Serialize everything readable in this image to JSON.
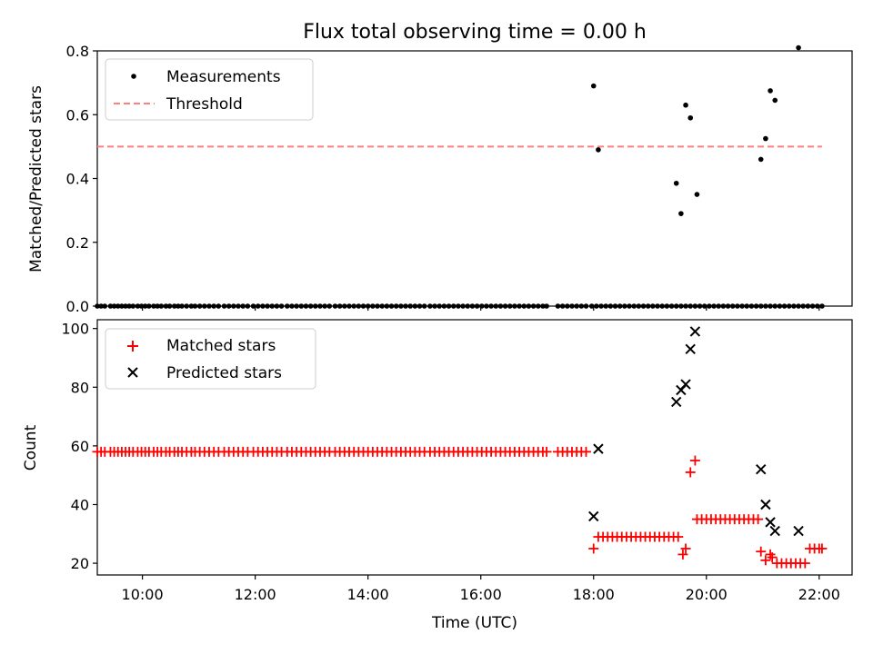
{
  "chart_data": [
    {
      "type": "scatter",
      "title": "Flux total observing time = 0.00 h",
      "xlabel": "",
      "ylabel": "Matched/Predicted stars",
      "xlim": [
        "09:12",
        "22:35"
      ],
      "ylim": [
        0,
        0.8
      ],
      "yticks": [
        0.0,
        0.2,
        0.4,
        0.6,
        0.8
      ],
      "ytick_labels": [
        "0.0",
        "0.2",
        "0.4",
        "0.6",
        "0.8"
      ],
      "legend_position": "upper-left",
      "series": [
        {
          "name": "Measurements",
          "kind": "scatter",
          "color": "#000000",
          "marker": "dot",
          "x": [
            "09:12",
            "09:16",
            "09:20",
            "09:26",
            "09:30",
            "09:34",
            "09:38",
            "09:42",
            "09:46",
            "09:50",
            "09:55",
            "09:59",
            "10:03",
            "10:07",
            "10:12",
            "10:16",
            "10:20",
            "10:25",
            "10:29",
            "10:34",
            "10:38",
            "10:42",
            "10:47",
            "10:52",
            "10:56",
            "11:01",
            "11:06",
            "11:11",
            "11:16",
            "11:21",
            "11:27",
            "11:32",
            "11:37",
            "11:42",
            "11:47",
            "11:52",
            "11:58",
            "12:03",
            "12:08",
            "12:13",
            "12:18",
            "12:23",
            "12:28",
            "12:34",
            "12:39",
            "12:44",
            "12:49",
            "12:54",
            "12:59",
            "13:04",
            "13:09",
            "13:14",
            "13:19",
            "13:25",
            "13:30",
            "13:35",
            "13:40",
            "13:45",
            "13:50",
            "13:55",
            "14:00",
            "14:05",
            "14:10",
            "14:15",
            "14:20",
            "14:25",
            "14:30",
            "14:35",
            "14:40",
            "14:45",
            "14:50",
            "14:55",
            "15:00",
            "15:06",
            "15:11",
            "15:16",
            "15:21",
            "15:26",
            "15:31",
            "15:36",
            "15:41",
            "15:46",
            "15:51",
            "15:56",
            "16:01",
            "16:06",
            "16:11",
            "16:16",
            "16:21",
            "16:26",
            "16:31",
            "16:36",
            "16:41",
            "16:46",
            "16:51",
            "16:56",
            "17:01",
            "17:06",
            "17:10",
            "17:22",
            "17:27",
            "17:32",
            "17:37",
            "17:42",
            "17:47",
            "17:52",
            "17:58",
            "18:03",
            "18:08",
            "18:13",
            "18:18",
            "18:23",
            "18:28",
            "18:33",
            "18:38",
            "18:43",
            "18:48",
            "18:53",
            "18:58",
            "19:03",
            "19:08",
            "19:13",
            "19:18",
            "19:23",
            "19:28",
            "19:33",
            "19:38",
            "19:43",
            "19:48",
            "19:53",
            "19:58",
            "20:03",
            "20:08",
            "20:13",
            "20:18",
            "20:23",
            "20:28",
            "20:33",
            "20:38",
            "20:43",
            "20:48",
            "20:53",
            "20:58",
            "21:03",
            "21:08",
            "21:13",
            "21:18",
            "21:23",
            "21:28",
            "21:33",
            "21:38",
            "21:43",
            "21:48",
            "21:53",
            "21:58",
            "22:03",
            "18:00",
            "18:05",
            "19:28",
            "19:33",
            "19:38",
            "19:43",
            "19:50",
            "20:58",
            "21:03",
            "21:08",
            "21:13",
            "21:38"
          ],
          "y": [
            0,
            0,
            0,
            0,
            0,
            0,
            0,
            0,
            0,
            0,
            0,
            0,
            0,
            0,
            0,
            0,
            0,
            0,
            0,
            0,
            0,
            0,
            0,
            0,
            0,
            0,
            0,
            0,
            0,
            0,
            0,
            0,
            0,
            0,
            0,
            0,
            0,
            0,
            0,
            0,
            0,
            0,
            0,
            0,
            0,
            0,
            0,
            0,
            0,
            0,
            0,
            0,
            0,
            0,
            0,
            0,
            0,
            0,
            0,
            0,
            0,
            0,
            0,
            0,
            0,
            0,
            0,
            0,
            0,
            0,
            0,
            0,
            0,
            0,
            0,
            0,
            0,
            0,
            0,
            0,
            0,
            0,
            0,
            0,
            0,
            0,
            0,
            0,
            0,
            0,
            0,
            0,
            0,
            0,
            0,
            0,
            0,
            0,
            0,
            0,
            0,
            0,
            0,
            0,
            0,
            0,
            0,
            0,
            0,
            0,
            0,
            0,
            0,
            0,
            0,
            0,
            0,
            0,
            0,
            0,
            0,
            0,
            0,
            0,
            0,
            0,
            0,
            0,
            0,
            0,
            0,
            0,
            0,
            0,
            0,
            0,
            0,
            0,
            0,
            0,
            0,
            0,
            0,
            0,
            0,
            0,
            0,
            0,
            0,
            0,
            0,
            0,
            0,
            0,
            0,
            0,
            0.69,
            0.49,
            0.385,
            0.29,
            0.63,
            0.59,
            0.35,
            0.46,
            0.525,
            0.675,
            0.645,
            0.81
          ]
        },
        {
          "name": "Threshold",
          "kind": "line",
          "color": "#ff7f7f",
          "style": "dashed",
          "x": [
            "09:12",
            "22:03"
          ],
          "y": [
            0.5,
            0.5
          ]
        }
      ]
    },
    {
      "type": "scatter",
      "title": "",
      "xlabel": "Time (UTC)",
      "ylabel": "Count",
      "xlim": [
        "09:12",
        "22:35"
      ],
      "ylim": [
        16,
        103
      ],
      "yticks": [
        20,
        40,
        60,
        80,
        100
      ],
      "ytick_labels": [
        "20",
        "40",
        "60",
        "80",
        "100"
      ],
      "xticks": [
        "10:00",
        "12:00",
        "14:00",
        "16:00",
        "18:00",
        "20:00",
        "22:00"
      ],
      "legend_position": "upper-left",
      "series": [
        {
          "name": "Matched stars",
          "kind": "scatter",
          "color": "#ff0000",
          "marker": "plus",
          "x": [
            "09:12",
            "09:16",
            "09:20",
            "09:26",
            "09:30",
            "09:34",
            "09:38",
            "09:42",
            "09:46",
            "09:50",
            "09:55",
            "09:59",
            "10:03",
            "10:07",
            "10:12",
            "10:16",
            "10:20",
            "10:25",
            "10:29",
            "10:34",
            "10:38",
            "10:42",
            "10:47",
            "10:52",
            "10:56",
            "11:01",
            "11:06",
            "11:11",
            "11:16",
            "11:21",
            "11:27",
            "11:32",
            "11:37",
            "11:42",
            "11:47",
            "11:52",
            "11:58",
            "12:03",
            "12:08",
            "12:13",
            "12:18",
            "12:23",
            "12:28",
            "12:34",
            "12:39",
            "12:44",
            "12:49",
            "12:54",
            "12:59",
            "13:04",
            "13:09",
            "13:14",
            "13:19",
            "13:25",
            "13:30",
            "13:35",
            "13:40",
            "13:45",
            "13:50",
            "13:55",
            "14:00",
            "14:05",
            "14:10",
            "14:15",
            "14:20",
            "14:25",
            "14:30",
            "14:35",
            "14:40",
            "14:45",
            "14:50",
            "14:55",
            "15:00",
            "15:06",
            "15:11",
            "15:16",
            "15:21",
            "15:26",
            "15:31",
            "15:36",
            "15:41",
            "15:46",
            "15:51",
            "15:56",
            "16:01",
            "16:06",
            "16:11",
            "16:16",
            "16:21",
            "16:26",
            "16:31",
            "16:36",
            "16:41",
            "16:46",
            "16:51",
            "16:56",
            "17:01",
            "17:06",
            "17:10",
            "17:22",
            "17:27",
            "17:32",
            "17:37",
            "17:42",
            "17:47",
            "17:52",
            "18:00",
            "18:05",
            "18:10",
            "18:15",
            "18:20",
            "18:25",
            "18:30",
            "18:35",
            "18:40",
            "18:45",
            "18:50",
            "18:55",
            "19:00",
            "19:05",
            "19:10",
            "19:15",
            "19:20",
            "19:25",
            "19:30",
            "19:35",
            "19:50",
            "19:55",
            "20:00",
            "20:05",
            "20:10",
            "20:15",
            "20:20",
            "20:25",
            "20:30",
            "20:35",
            "20:40",
            "20:45",
            "20:50",
            "20:55",
            "21:15",
            "21:20",
            "21:25",
            "21:30",
            "21:35",
            "21:40",
            "21:45",
            "21:50",
            "21:55",
            "22:00",
            "22:03",
            "19:38",
            "19:43",
            "19:48",
            "20:58",
            "21:03",
            "21:08",
            "21:10"
          ],
          "y": [
            58,
            58,
            58,
            58,
            58,
            58,
            58,
            58,
            58,
            58,
            58,
            58,
            58,
            58,
            58,
            58,
            58,
            58,
            58,
            58,
            58,
            58,
            58,
            58,
            58,
            58,
            58,
            58,
            58,
            58,
            58,
            58,
            58,
            58,
            58,
            58,
            58,
            58,
            58,
            58,
            58,
            58,
            58,
            58,
            58,
            58,
            58,
            58,
            58,
            58,
            58,
            58,
            58,
            58,
            58,
            58,
            58,
            58,
            58,
            58,
            58,
            58,
            58,
            58,
            58,
            58,
            58,
            58,
            58,
            58,
            58,
            58,
            58,
            58,
            58,
            58,
            58,
            58,
            58,
            58,
            58,
            58,
            58,
            58,
            58,
            58,
            58,
            58,
            58,
            58,
            58,
            58,
            58,
            58,
            58,
            58,
            58,
            58,
            58,
            58,
            58,
            58,
            58,
            58,
            58,
            58,
            25,
            29,
            29,
            29,
            29,
            29,
            29,
            29,
            29,
            29,
            29,
            29,
            29,
            29,
            29,
            29,
            29,
            29,
            29,
            23,
            35,
            35,
            35,
            35,
            35,
            35,
            35,
            35,
            35,
            35,
            35,
            35,
            35,
            35,
            20,
            20,
            20,
            20,
            20,
            20,
            20,
            25,
            25,
            25,
            25,
            25,
            51,
            55,
            24,
            21,
            23,
            22
          ]
        },
        {
          "name": "Predicted stars",
          "kind": "scatter",
          "color": "#000000",
          "marker": "x",
          "x": [
            "18:00",
            "18:05",
            "19:28",
            "19:33",
            "19:38",
            "19:43",
            "19:48",
            "20:58",
            "21:03",
            "21:08",
            "21:13",
            "21:38"
          ],
          "y": [
            36,
            59,
            75,
            79,
            81,
            93,
            99,
            52,
            40,
            34,
            31,
            31
          ]
        }
      ]
    }
  ]
}
